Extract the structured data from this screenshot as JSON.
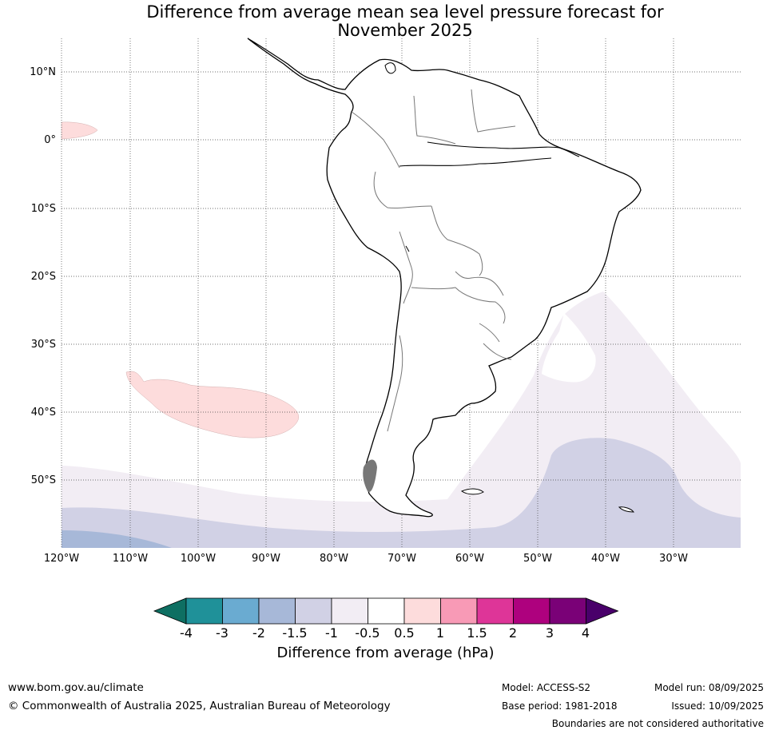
{
  "title_line1": "Difference from average mean sea level pressure forecast for",
  "title_line2": "November 2025",
  "lat_labels": [
    "10°N",
    "0°",
    "10°S",
    "20°S",
    "30°S",
    "40°S",
    "50°S"
  ],
  "lon_labels": [
    "120°W",
    "110°W",
    "100°W",
    "90°W",
    "80°W",
    "70°W",
    "60°W",
    "50°W",
    "40°W",
    "30°W"
  ],
  "colorbar": {
    "ticks": [
      "-4",
      "-3",
      "-2",
      "-1.5",
      "-1",
      "-0.5",
      "0.5",
      "1",
      "1.5",
      "2",
      "3",
      "4"
    ],
    "colors": [
      "#0e6f62",
      "#1f9199",
      "#6aabd1",
      "#a7b8d8",
      "#d1d1e5",
      "#f2edf4",
      "#ffffff",
      "#fddcdc",
      "#f89ab6",
      "#de3598",
      "#ae017e",
      "#7a0177",
      "#49006a"
    ],
    "label": "Difference from average (hPa)"
  },
  "footer": {
    "website": "www.bom.gov.au/climate",
    "copyright": "© Commonwealth of Australia 2025, Australian Bureau of Meteorology",
    "model": "Model: ACCESS-S2",
    "model_run": "Model run: 08/09/2025",
    "base_period": "Base period: 1981-2018",
    "issued": "Issued: 10/09/2025",
    "disclaimer": "Boundaries are not considered authoritative"
  }
}
